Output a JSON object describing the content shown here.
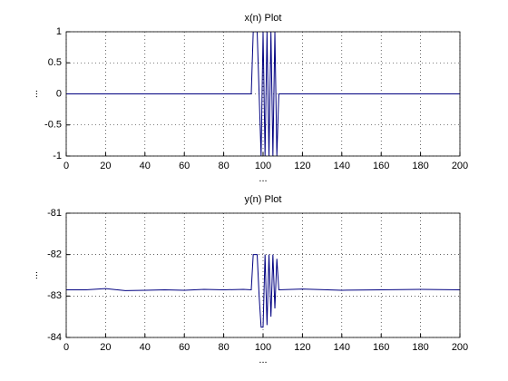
{
  "chart_data": [
    {
      "type": "line",
      "title": "x(n) Plot",
      "xlabel": "...",
      "ylabel": "...",
      "x": [
        0,
        94,
        95,
        97,
        99,
        100,
        101,
        102,
        103,
        104,
        105,
        106,
        107,
        108,
        200
      ],
      "values": [
        0,
        0,
        1,
        1,
        -1,
        1,
        -1,
        1,
        -1,
        1,
        -1,
        1,
        -1,
        0,
        0
      ],
      "color": "#000080",
      "xlim": [
        0,
        200
      ],
      "xticks": [
        0,
        20,
        40,
        60,
        80,
        100,
        120,
        140,
        160,
        180,
        200
      ],
      "ylim": [
        -1,
        1
      ],
      "yticks": [
        -1,
        -0.5,
        0,
        0.5,
        1
      ],
      "grid": true
    },
    {
      "type": "line",
      "title": "y(n) Plot",
      "xlabel": "...",
      "ylabel": "...",
      "x": [
        0,
        10,
        20,
        30,
        40,
        50,
        60,
        70,
        80,
        90,
        94,
        95,
        97,
        98,
        99,
        100,
        101,
        102,
        103,
        104,
        105,
        106,
        107,
        108,
        120,
        140,
        160,
        180,
        200
      ],
      "values": [
        -82.85,
        -82.85,
        -82.82,
        -82.87,
        -82.86,
        -82.85,
        -82.86,
        -82.84,
        -82.85,
        -82.84,
        -82.85,
        -82.0,
        -82.0,
        -83.0,
        -83.75,
        -83.75,
        -82.0,
        -83.7,
        -82.0,
        -83.5,
        -82.0,
        -83.3,
        -82.1,
        -82.85,
        -82.83,
        -82.86,
        -82.85,
        -82.84,
        -82.85
      ],
      "color": "#000080",
      "xlim": [
        0,
        200
      ],
      "xticks": [
        0,
        20,
        40,
        60,
        80,
        100,
        120,
        140,
        160,
        180,
        200
      ],
      "ylim": [
        -84,
        -81
      ],
      "yticks": [
        -84,
        -83,
        -82,
        -81
      ],
      "grid": true
    }
  ]
}
